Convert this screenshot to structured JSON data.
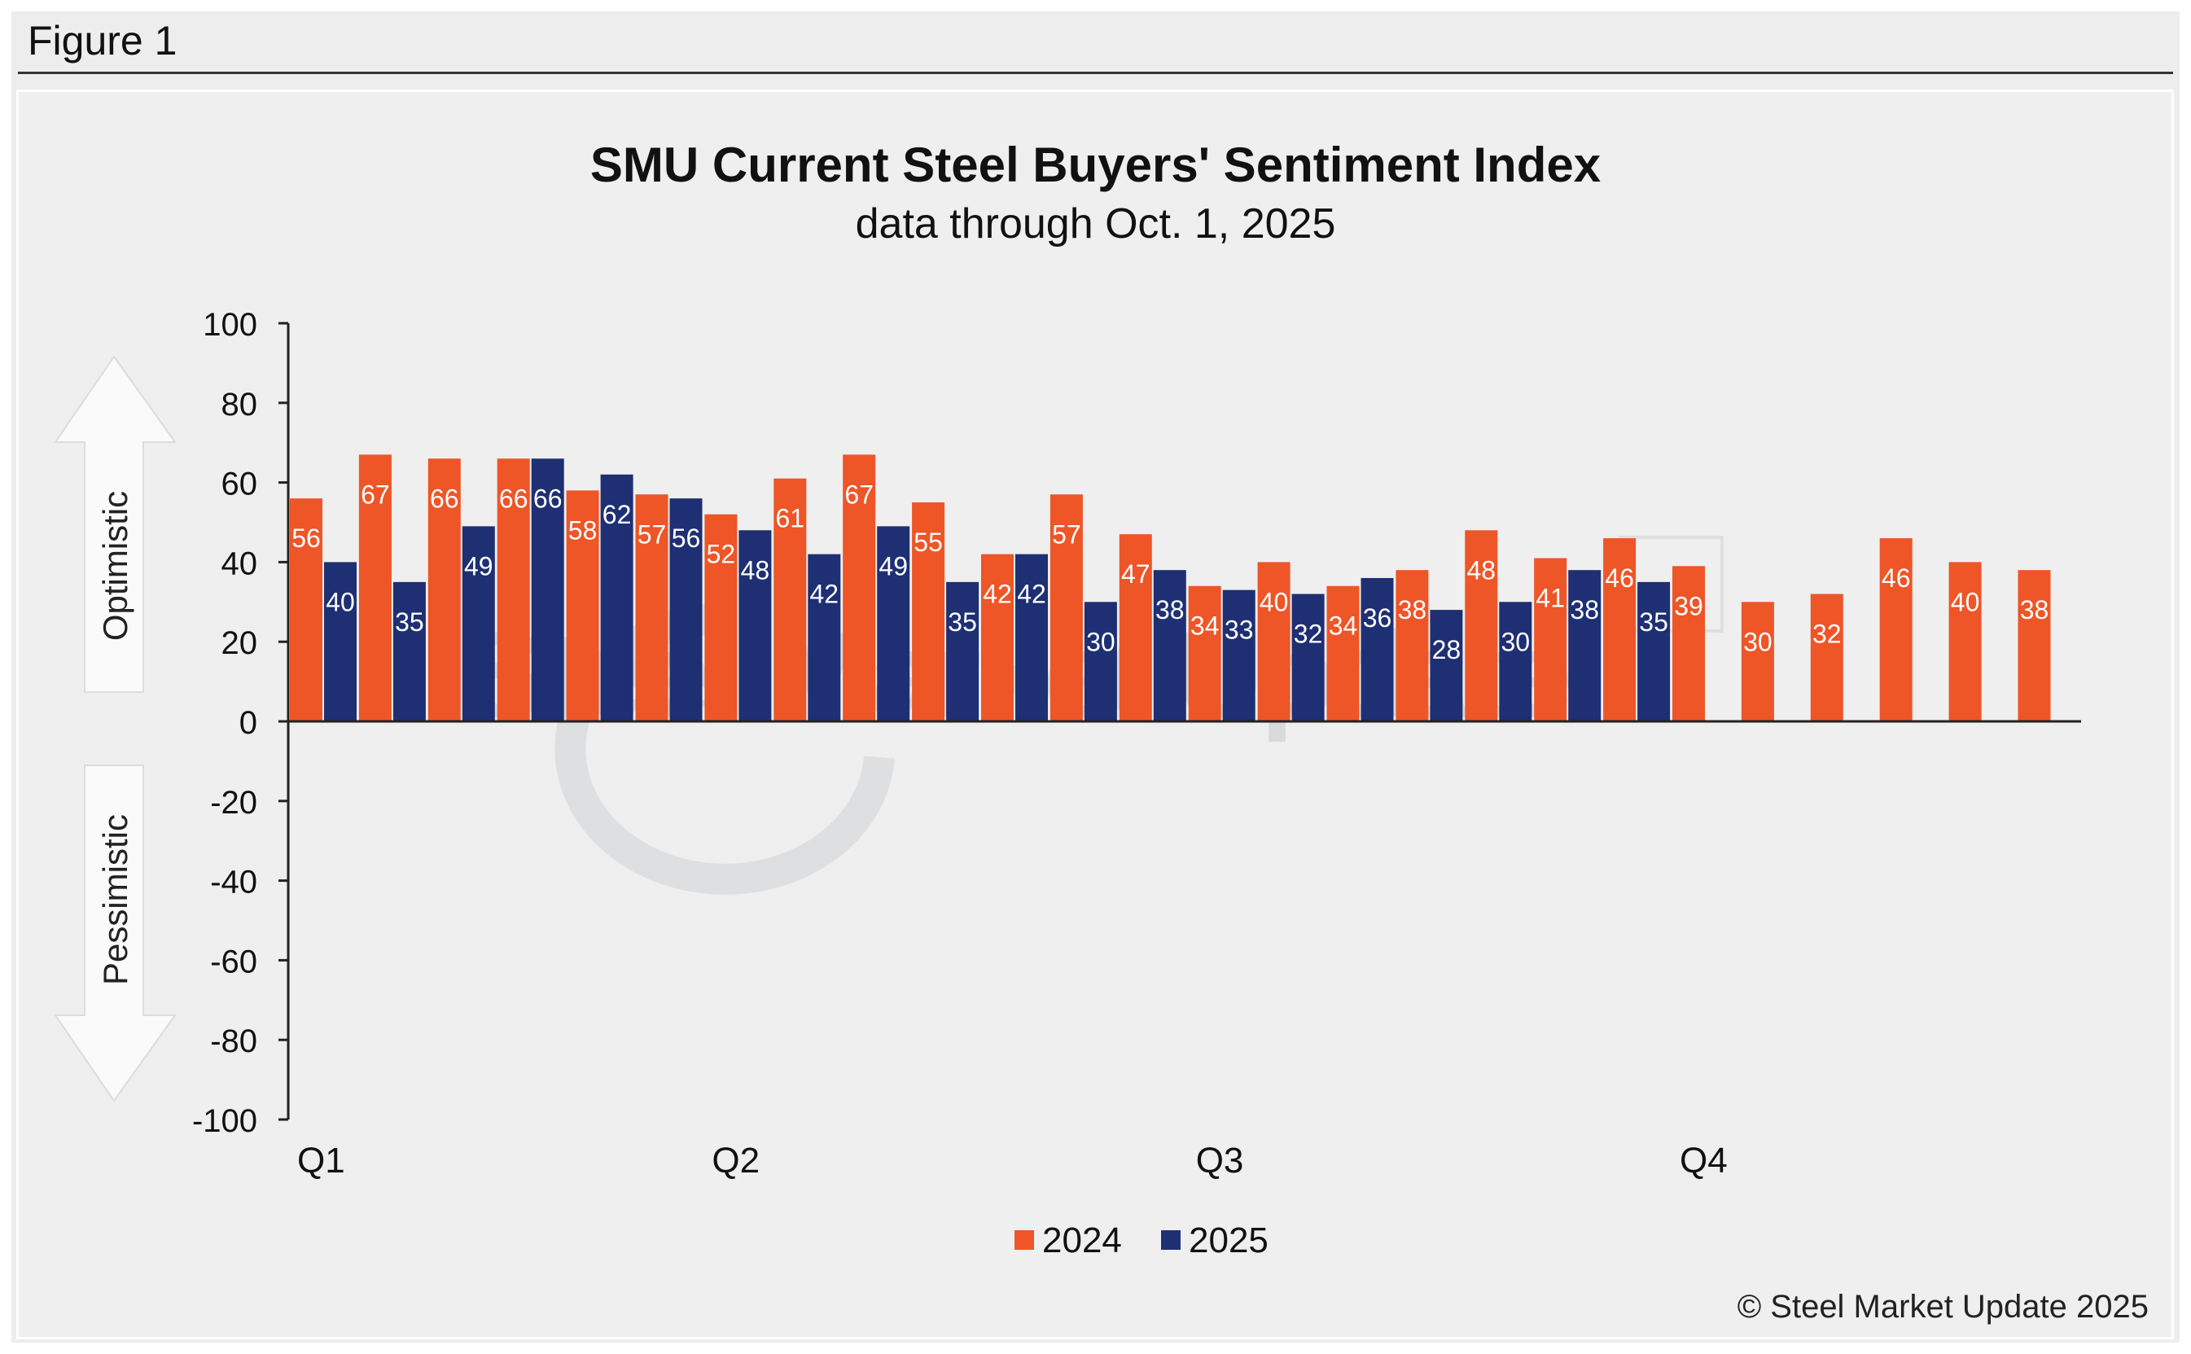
{
  "figure_label": "Figure 1",
  "copyright": "© Steel Market Update 2025",
  "watermark": "Steel Market Update",
  "colors": {
    "series_2024": "#ee5527",
    "series_2025": "#1e2f73",
    "background": "#efefef",
    "axis": "#222222"
  },
  "chart_data": {
    "type": "bar",
    "title": "SMU Current Steel Buyers' Sentiment Index",
    "subtitle": "data through Oct. 1, 2025",
    "ylim": [
      -100,
      100
    ],
    "yticks": [
      100,
      80,
      60,
      40,
      20,
      0,
      -20,
      -40,
      -60,
      -80,
      -100
    ],
    "x_group_labels": [
      "Q1",
      "Q2",
      "Q3",
      "Q4"
    ],
    "x_label_group_index": [
      0,
      6,
      13,
      20
    ],
    "annotations": {
      "upper": "Optimistic",
      "lower": "Pessimistic"
    },
    "legend": {
      "position": "bottom-center",
      "entries": [
        "2024",
        "2025"
      ]
    },
    "series": [
      {
        "name": "2024",
        "values": [
          56,
          67,
          66,
          66,
          58,
          57,
          52,
          61,
          67,
          55,
          42,
          57,
          47,
          34,
          40,
          34,
          38,
          48,
          41,
          46,
          39,
          30,
          32,
          46,
          40,
          38
        ]
      },
      {
        "name": "2025",
        "values": [
          40,
          35,
          49,
          66,
          62,
          56,
          48,
          42,
          49,
          35,
          42,
          30,
          38,
          33,
          32,
          36,
          28,
          30,
          38,
          35,
          null,
          null,
          null,
          null,
          null,
          null
        ]
      }
    ]
  }
}
